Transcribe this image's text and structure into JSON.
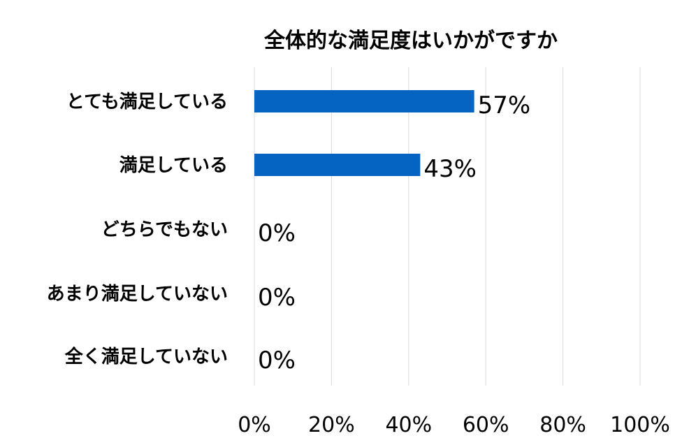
{
  "chart_data": {
    "type": "bar",
    "orientation": "horizontal",
    "title": "全体的な満足度はいかがですか",
    "categories": [
      "とても満足している",
      "満足している",
      "どちらでもない",
      "あまり満足していない",
      "全く満足していない"
    ],
    "values": [
      57,
      43,
      0,
      0,
      0
    ],
    "data_labels": [
      "57%",
      "43%",
      "0%",
      "0%",
      "0%"
    ],
    "xlim": [
      0,
      100
    ],
    "x_ticks": [
      0,
      20,
      40,
      60,
      80,
      100
    ],
    "x_tick_labels": [
      "0%",
      "20%",
      "40%",
      "60%",
      "80%",
      "100%"
    ],
    "xlabel": "",
    "ylabel": "",
    "grid": true,
    "legend": "none",
    "bar_color": "#0563C1",
    "gridline_color": "#D9D9D9"
  }
}
